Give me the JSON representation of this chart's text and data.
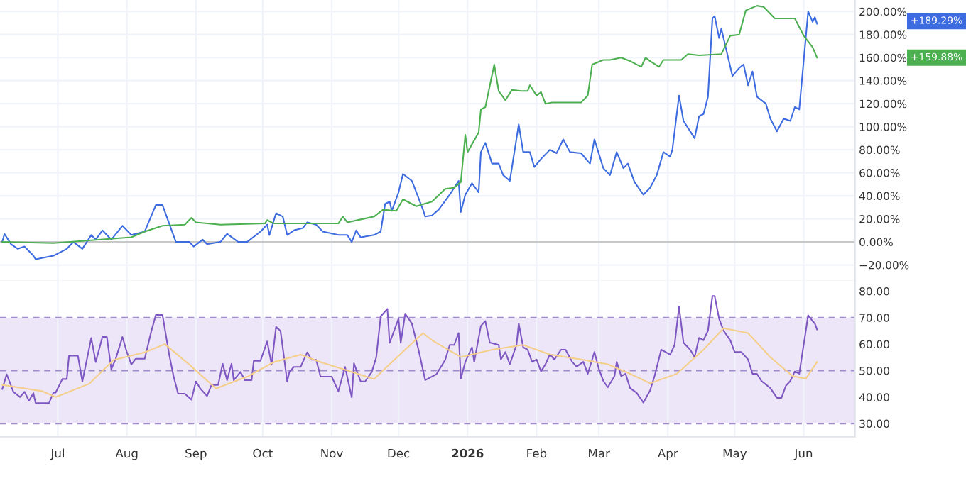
{
  "chart_data": [
    {
      "type": "line",
      "tick_labels": "y",
      "grid": true,
      "line_style": "solid",
      "marker": "none",
      "xlim": [
        "2025-06-05",
        "2026-06-24"
      ],
      "xticks": [
        {
          "value": "2025-07-01",
          "label": null
        },
        {
          "value": "2025-08-01",
          "label": null
        },
        {
          "value": "2025-09-01",
          "label": null
        },
        {
          "value": "2025-10-01",
          "label": null
        },
        {
          "value": "2025-11-01",
          "label": null
        },
        {
          "value": "2025-12-01",
          "label": null
        },
        {
          "value": "2026-01-01",
          "label": null
        },
        {
          "value": "2026-02-01",
          "label": null
        },
        {
          "value": "2026-03-01",
          "label": null
        },
        {
          "value": "2026-04-01",
          "label": null
        },
        {
          "value": "2026-05-01",
          "label": null
        },
        {
          "value": "2026-06-01",
          "label": null
        }
      ],
      "ylim": [
        -34,
        210
      ],
      "yticks": [
        {
          "value": -20,
          "label": "−20.00%"
        },
        {
          "value": 0,
          "label": "0.00%"
        },
        {
          "value": 20,
          "label": "20.00%"
        },
        {
          "value": 40,
          "label": "40.00%"
        },
        {
          "value": 60,
          "label": "60.00%"
        },
        {
          "value": 80,
          "label": "80.00%"
        },
        {
          "value": 100,
          "label": "100.00%"
        },
        {
          "value": 120,
          "label": "120.00%"
        },
        {
          "value": 140,
          "label": "140.00%"
        },
        {
          "value": 160,
          "label": "160.00%"
        },
        {
          "value": 180,
          "label": "180.00%"
        },
        {
          "value": 200,
          "label": "200.00%"
        }
      ],
      "ref_lines": [
        {
          "axis": "y",
          "value": 0,
          "label": null,
          "color": "#c8c8c8",
          "line_style": "solid"
        }
      ],
      "annotations": [
        "+189.29%",
        "+159.88%"
      ],
      "series": [
        {
          "color": "#3d6be0",
          "x": [
            "2025-06-06",
            "2025-06-07",
            "2025-06-10",
            "2025-06-13",
            "2025-06-16",
            "2025-06-20",
            "2025-06-21",
            "2025-06-29",
            "2025-07-05",
            "2025-07-08",
            "2025-07-12",
            "2025-07-16",
            "2025-07-18",
            "2025-07-21",
            "2025-07-25",
            "2025-07-30",
            "2025-08-03",
            "2025-08-09",
            "2025-08-14",
            "2025-08-17",
            "2025-08-23",
            "2025-08-29",
            "2025-08-31",
            "2025-09-04",
            "2025-09-06",
            "2025-09-12",
            "2025-09-15",
            "2025-09-20",
            "2025-09-24",
            "2025-09-30",
            "2025-10-03",
            "2025-10-04",
            "2025-10-07",
            "2025-10-10",
            "2025-10-12",
            "2025-10-15",
            "2025-10-19",
            "2025-10-21",
            "2025-10-25",
            "2025-10-28",
            "2025-11-04",
            "2025-11-08",
            "2025-11-10",
            "2025-11-12",
            "2025-11-14",
            "2025-11-20",
            "2025-11-23",
            "2025-11-25",
            "2025-11-27",
            "2025-11-28",
            "2025-12-01",
            "2025-12-03",
            "2025-12-07",
            "2025-12-09",
            "2025-12-12",
            "2025-12-13",
            "2025-12-16",
            "2025-12-19",
            "2025-12-24",
            "2025-12-28",
            "2025-12-29",
            "2025-12-31",
            "2026-01-03",
            "2026-01-06",
            "2026-01-07",
            "2026-01-09",
            "2026-01-12",
            "2026-01-15",
            "2026-01-17",
            "2026-01-20",
            "2026-01-24",
            "2026-01-26",
            "2026-01-29",
            "2026-01-31",
            "2026-02-03",
            "2026-02-07",
            "2026-02-10",
            "2026-02-13",
            "2026-02-16",
            "2026-02-21",
            "2026-02-25",
            "2026-02-27",
            "2026-03-03",
            "2026-03-06",
            "2026-03-09",
            "2026-03-12",
            "2026-03-14",
            "2026-03-17",
            "2026-03-21",
            "2026-03-24",
            "2026-03-27",
            "2026-03-30",
            "2026-04-02",
            "2026-04-03",
            "2026-04-06",
            "2026-04-08",
            "2026-04-13",
            "2026-04-15",
            "2026-04-17",
            "2026-04-19",
            "2026-04-21",
            "2026-04-22",
            "2026-04-24",
            "2026-04-25",
            "2026-04-30",
            "2026-05-03",
            "2026-05-05",
            "2026-05-07",
            "2026-05-09",
            "2026-05-11",
            "2026-05-15",
            "2026-05-17",
            "2026-05-20",
            "2026-05-23",
            "2026-05-26",
            "2026-05-28",
            "2026-05-30",
            "2026-06-03",
            "2026-06-05",
            "2026-06-06",
            "2026-06-07"
          ],
          "values": [
            0,
            7,
            -2,
            -6,
            -4,
            -12,
            -15,
            -12,
            -6,
            0,
            -6,
            6,
            2,
            10,
            2,
            14,
            6,
            9,
            32,
            32,
            0,
            0,
            -4,
            2,
            -2,
            0,
            7,
            0,
            0,
            9,
            15,
            6,
            25,
            22,
            6,
            10,
            12,
            17,
            15,
            9,
            6,
            6,
            0,
            10,
            4,
            6,
            9,
            33,
            35,
            27,
            43,
            59,
            53,
            43,
            28,
            22,
            23,
            28,
            41,
            53,
            26,
            41,
            51,
            43,
            78,
            86,
            68,
            68,
            58,
            53,
            102,
            78,
            78,
            65,
            72,
            80,
            77,
            89,
            78,
            77,
            68,
            89,
            64,
            58,
            78,
            64,
            68,
            52,
            41,
            47,
            58,
            78,
            74,
            80,
            127,
            105,
            90,
            109,
            111,
            126,
            194,
            196,
            177,
            185,
            144,
            151,
            154,
            136,
            148,
            126,
            120,
            107,
            96,
            107,
            105,
            117,
            115,
            200,
            191,
            195,
            189.29
          ]
        },
        {
          "color": "#4caf50",
          "x": [
            "2025-06-06",
            "2025-06-29",
            "2025-08-03",
            "2025-08-09",
            "2025-08-17",
            "2025-08-27",
            "2025-08-30",
            "2025-09-01",
            "2025-09-12",
            "2025-10-02",
            "2025-10-03",
            "2025-10-06",
            "2025-11-04",
            "2025-11-06",
            "2025-11-08",
            "2025-11-20",
            "2025-11-24",
            "2025-11-30",
            "2025-12-03",
            "2025-12-09",
            "2025-12-16",
            "2025-12-22",
            "2025-12-26",
            "2025-12-29",
            "2025-12-31",
            "2026-01-01",
            "2026-01-06",
            "2026-01-07",
            "2026-01-09",
            "2026-01-13",
            "2026-01-15",
            "2026-01-18",
            "2026-01-21",
            "2026-01-25",
            "2026-01-28",
            "2026-01-29",
            "2026-02-01",
            "2026-02-03",
            "2026-02-05",
            "2026-02-08",
            "2026-02-21",
            "2026-02-24",
            "2026-02-26",
            "2026-03-03",
            "2026-03-06",
            "2026-03-11",
            "2026-03-15",
            "2026-03-20",
            "2026-03-22",
            "2026-03-24",
            "2026-03-28",
            "2026-03-30",
            "2026-04-07",
            "2026-04-10",
            "2026-04-15",
            "2026-04-25",
            "2026-04-29",
            "2026-05-03",
            "2026-05-06",
            "2026-05-11",
            "2026-05-14",
            "2026-05-19",
            "2026-05-28",
            "2026-06-01",
            "2026-06-05",
            "2026-06-07"
          ],
          "values": [
            0,
            -1,
            4,
            9,
            14,
            15,
            21,
            17,
            15,
            16,
            19,
            16,
            16,
            22,
            17,
            22,
            28,
            27,
            37,
            31,
            35,
            46,
            47,
            52,
            93,
            78,
            95,
            115,
            117,
            154,
            131,
            123,
            132,
            131,
            131,
            136,
            127,
            130,
            120,
            121,
            121,
            127,
            154,
            158,
            158,
            160,
            157,
            152,
            160,
            157,
            152,
            158,
            158,
            163,
            162,
            163,
            179,
            180,
            201,
            205,
            204,
            194,
            194,
            179,
            169,
            159.88
          ]
        }
      ]
    },
    {
      "type": "line",
      "grid": "x",
      "line_style": "solid",
      "marker": "none",
      "xlim": [
        "2025-06-05",
        "2026-06-24"
      ],
      "xticks": [
        {
          "value": "2025-07-01",
          "label": "Jul"
        },
        {
          "value": "2025-08-01",
          "label": "Aug"
        },
        {
          "value": "2025-09-01",
          "label": "Sep"
        },
        {
          "value": "2025-10-01",
          "label": "Oct"
        },
        {
          "value": "2025-11-01",
          "label": "Nov"
        },
        {
          "value": "2025-12-01",
          "label": "Dec"
        },
        {
          "value": "2026-01-01",
          "label": "2026"
        },
        {
          "value": "2026-02-01",
          "label": "Feb"
        },
        {
          "value": "2026-03-01",
          "label": "Mar"
        },
        {
          "value": "2026-04-01",
          "label": "Apr"
        },
        {
          "value": "2026-05-01",
          "label": "May"
        },
        {
          "value": "2026-06-01",
          "label": "Jun"
        }
      ],
      "ylim": [
        25,
        84
      ],
      "yticks": [
        {
          "value": 30,
          "label": "30.00"
        },
        {
          "value": 40,
          "label": "40.00"
        },
        {
          "value": 50,
          "label": "50.00"
        },
        {
          "value": 60,
          "label": "60.00"
        },
        {
          "value": 70,
          "label": "70.00"
        },
        {
          "value": 80,
          "label": "80.00"
        }
      ],
      "bands": [
        {
          "axis": "y",
          "from": 30,
          "to": 70,
          "label": null,
          "color": "#ece6f8"
        }
      ],
      "ref_lines": [
        {
          "axis": "y",
          "value": 70,
          "label": null,
          "color": "#a08cc8",
          "line_style": "dashed"
        },
        {
          "axis": "y",
          "value": 50,
          "label": null,
          "color": "#a08cc8",
          "line_style": "dashed"
        },
        {
          "axis": "y",
          "value": 30,
          "label": null,
          "color": "#a08cc8",
          "line_style": "dashed"
        }
      ],
      "series": [
        {
          "color": "#7e57c2",
          "x": [
            "2025-06-06",
            "2025-06-08",
            "2025-06-11",
            "2025-06-14",
            "2025-06-16",
            "2025-06-18",
            "2025-06-20",
            "2025-06-21",
            "2025-06-27",
            "2025-06-29",
            "2025-06-30",
            "2025-07-03",
            "2025-07-05",
            "2025-07-06",
            "2025-07-10",
            "2025-07-12",
            "2025-07-16",
            "2025-07-18",
            "2025-07-21",
            "2025-07-23",
            "2025-07-25",
            "2025-07-27",
            "2025-07-30",
            "2025-08-01",
            "2025-08-03",
            "2025-08-05",
            "2025-08-09",
            "2025-08-12",
            "2025-08-14",
            "2025-08-17",
            "2025-08-20",
            "2025-08-22",
            "2025-08-24",
            "2025-08-27",
            "2025-08-30",
            "2025-09-01",
            "2025-09-03",
            "2025-09-06",
            "2025-09-08",
            "2025-09-11",
            "2025-09-13",
            "2025-09-15",
            "2025-09-17",
            "2025-09-18",
            "2025-09-21",
            "2025-09-23",
            "2025-09-26",
            "2025-09-27",
            "2025-09-30",
            "2025-10-03",
            "2025-10-05",
            "2025-10-07",
            "2025-10-09",
            "2025-10-12",
            "2025-10-13",
            "2025-10-15",
            "2025-10-18",
            "2025-10-21",
            "2025-10-23",
            "2025-10-25",
            "2025-10-27",
            "2025-11-01",
            "2025-11-04",
            "2025-11-07",
            "2025-11-10",
            "2025-11-11",
            "2025-11-14",
            "2025-11-16",
            "2025-11-19",
            "2025-11-21",
            "2025-11-23",
            "2025-11-26",
            "2025-11-27",
            "2025-12-01",
            "2025-12-02",
            "2025-12-04",
            "2025-12-07",
            "2025-12-10",
            "2025-12-13",
            "2025-12-18",
            "2025-12-22",
            "2025-12-24",
            "2025-12-26",
            "2025-12-28",
            "2025-12-29",
            "2025-12-31",
            "2026-01-03",
            "2026-01-04",
            "2026-01-07",
            "2026-01-09",
            "2026-01-11",
            "2026-01-15",
            "2026-01-16",
            "2026-01-18",
            "2026-01-20",
            "2026-01-23",
            "2026-01-24",
            "2026-01-26",
            "2026-01-28",
            "2026-01-30",
            "2026-02-01",
            "2026-02-03",
            "2026-02-05",
            "2026-02-07",
            "2026-02-09",
            "2026-02-12",
            "2026-02-14",
            "2026-02-17",
            "2026-02-19",
            "2026-02-22",
            "2026-02-24",
            "2026-02-27",
            "2026-03-01",
            "2026-03-03",
            "2026-03-05",
            "2026-03-08",
            "2026-03-09",
            "2026-03-11",
            "2026-03-13",
            "2026-03-15",
            "2026-03-18",
            "2026-03-21",
            "2026-03-24",
            "2026-03-26",
            "2026-03-29",
            "2026-03-31",
            "2026-04-02",
            "2026-04-04",
            "2026-04-06",
            "2026-04-08",
            "2026-04-11",
            "2026-04-13",
            "2026-04-15",
            "2026-04-17",
            "2026-04-19",
            "2026-04-21",
            "2026-04-22",
            "2026-04-24",
            "2026-04-26",
            "2026-04-29",
            "2026-05-01",
            "2026-05-04",
            "2026-05-07",
            "2026-05-09",
            "2026-05-11",
            "2026-05-13",
            "2026-05-17",
            "2026-05-20",
            "2026-05-22",
            "2026-05-24",
            "2026-05-26",
            "2026-05-28",
            "2026-05-30",
            "2026-06-03",
            "2026-06-05",
            "2026-06-06",
            "2026-06-07"
          ],
          "values": [
            43,
            48.6,
            42,
            40,
            42,
            38.6,
            41.5,
            37.7,
            37.7,
            41.7,
            41.7,
            46.8,
            46.8,
            55.6,
            55.6,
            45.9,
            62.3,
            53.2,
            62.7,
            62.7,
            50.5,
            54.5,
            62.7,
            56.9,
            52.3,
            54.5,
            54.5,
            65,
            71,
            71,
            56,
            47.7,
            41.3,
            41.3,
            39,
            45.9,
            43.2,
            40.4,
            44.6,
            44.6,
            52.6,
            46.4,
            52.6,
            46.4,
            49.5,
            46.4,
            46.4,
            53.7,
            53.7,
            61,
            52.3,
            66.5,
            65,
            45.9,
            49.5,
            51.4,
            51.4,
            56.9,
            54.1,
            54.1,
            47.7,
            47.7,
            42.2,
            51.4,
            39.9,
            52.7,
            45.9,
            45.9,
            49.5,
            55,
            70.5,
            73.3,
            60.5,
            69.6,
            60.5,
            71.5,
            67.8,
            57.8,
            46.4,
            48.6,
            54.1,
            59.7,
            59.7,
            64.2,
            47,
            53.3,
            58.8,
            53.3,
            66.9,
            68.7,
            60.6,
            59.7,
            54.2,
            57,
            52.4,
            59.7,
            67.8,
            58.8,
            57.9,
            53.3,
            54.2,
            49.7,
            52.4,
            56.1,
            54.2,
            57.9,
            57.9,
            53.3,
            51.5,
            53.3,
            48.8,
            57,
            50.6,
            46.1,
            43.7,
            47.9,
            53.3,
            47.9,
            48.8,
            43.4,
            41.6,
            37.9,
            42.5,
            47.9,
            57.9,
            57,
            56,
            59.7,
            74.2,
            60.6,
            57.9,
            55.1,
            62.4,
            61.5,
            65.1,
            78.2,
            78.2,
            69.6,
            65.1,
            61.5,
            57,
            57,
            54.2,
            48.8,
            48.8,
            46.1,
            43.4,
            39.7,
            39.7,
            44.3,
            46.1,
            49.7,
            48.8,
            70.9,
            68.7,
            67.8,
            65.5
          ]
        },
        {
          "color": "#f5cf8a",
          "x": [
            "2025-06-06",
            "2025-06-24",
            "2025-06-30",
            "2025-07-15",
            "2025-07-26",
            "2025-08-09",
            "2025-08-18",
            "2025-08-29",
            "2025-09-10",
            "2025-09-24",
            "2025-10-06",
            "2025-10-18",
            "2025-10-27",
            "2025-11-10",
            "2025-11-20",
            "2025-11-28",
            "2025-12-12",
            "2025-12-16",
            "2025-12-29",
            "2026-01-12",
            "2026-01-26",
            "2026-02-07",
            "2026-02-21",
            "2026-03-05",
            "2026-03-15",
            "2026-03-24",
            "2026-04-05",
            "2026-04-17",
            "2026-04-26",
            "2026-05-07",
            "2026-05-17",
            "2026-05-27",
            "2026-06-02",
            "2026-06-07"
          ],
          "values": [
            44.6,
            42.2,
            40,
            45,
            54,
            56.9,
            60,
            52.3,
            43.2,
            47.7,
            53.2,
            56,
            53.2,
            49.5,
            46.8,
            53.2,
            64.2,
            61.5,
            55.1,
            57.9,
            59.7,
            56.1,
            54.2,
            52.4,
            48.8,
            45.2,
            48.8,
            57.9,
            66,
            64.2,
            55.1,
            47.9,
            47,
            53.3
          ]
        }
      ]
    }
  ]
}
